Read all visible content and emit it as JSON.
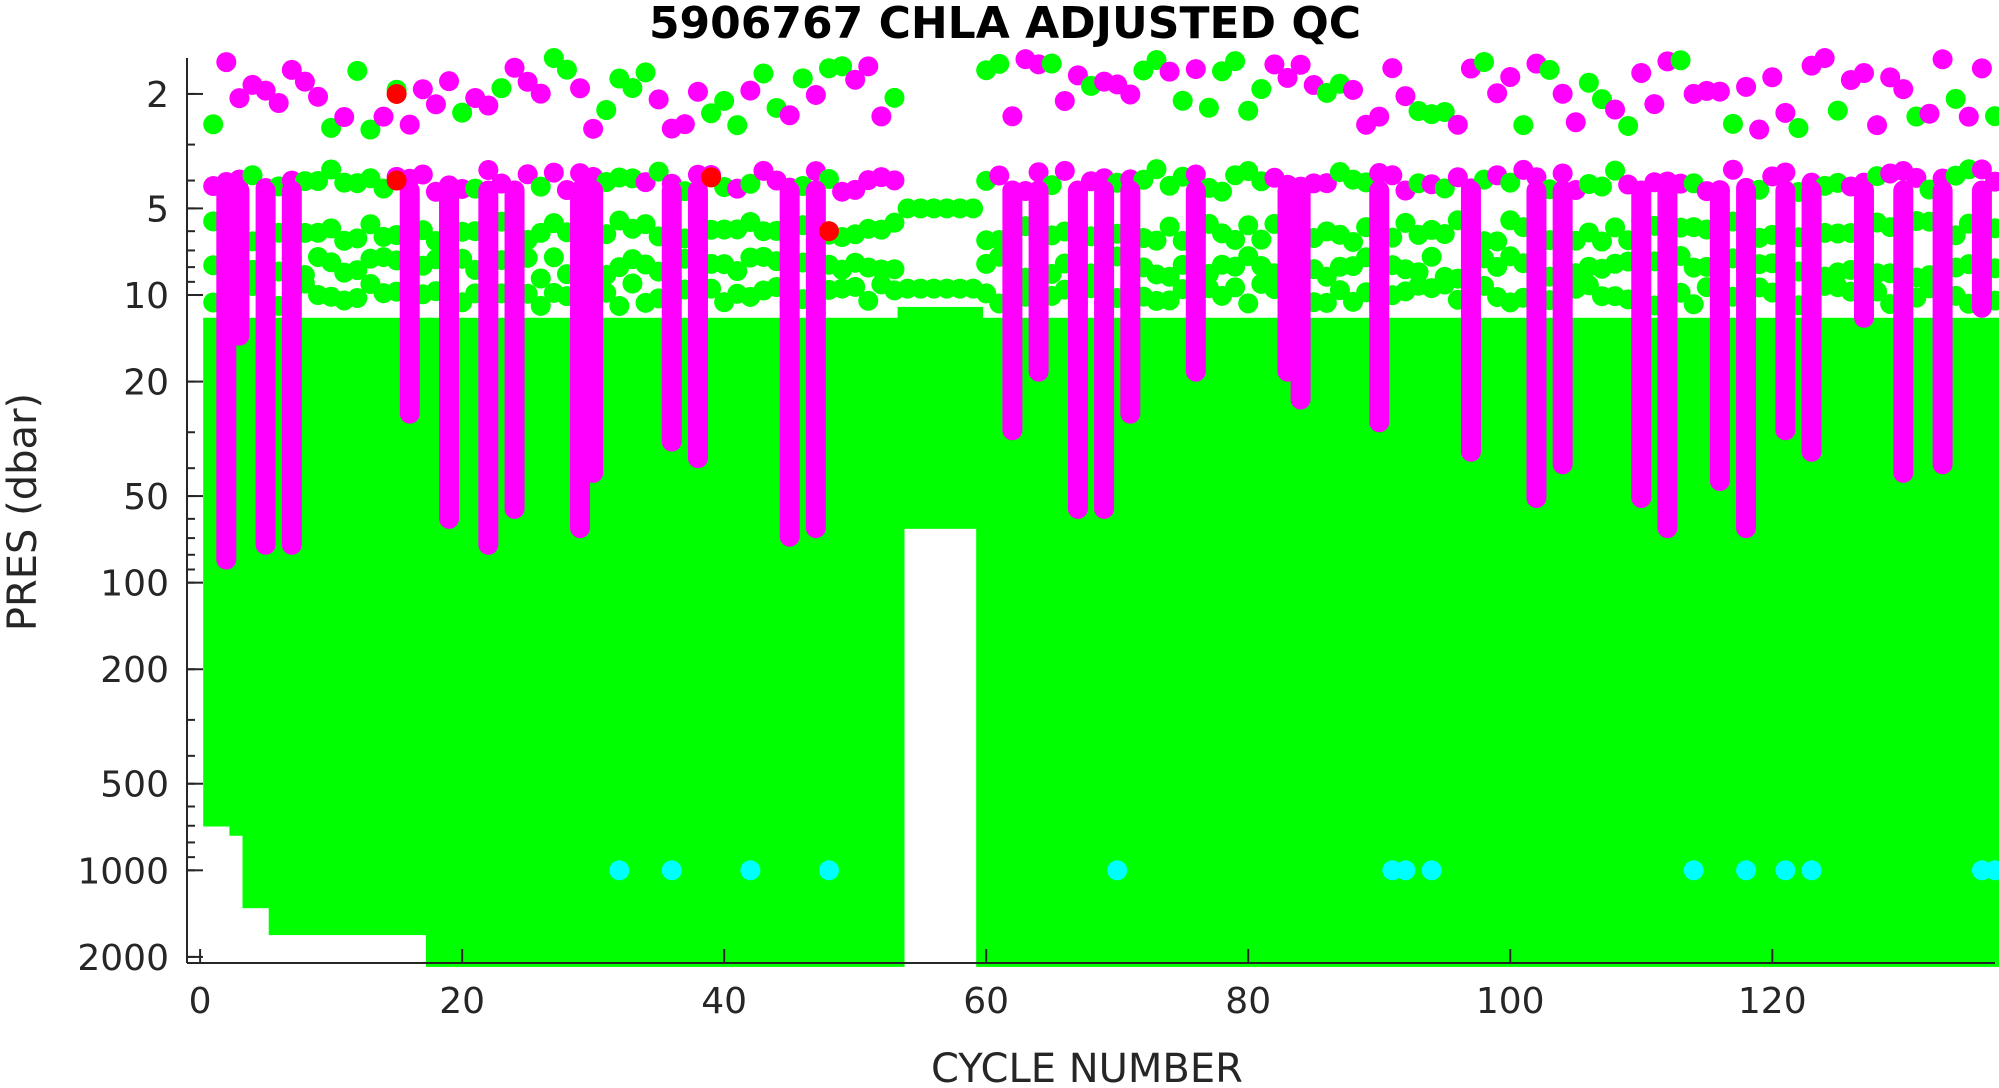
{
  "chart_data": {
    "type": "scatter",
    "title": "5906767  CHLA ADJUSTED QC",
    "xlabel": "CYCLE NUMBER",
    "ylabel": "PRES (dbar)",
    "xlim": [
      -1,
      137
    ],
    "ylim": [
      1.5,
      2100
    ],
    "yscale": "log",
    "y_reversed": true,
    "x_ticks": [
      0,
      20,
      40,
      60,
      80,
      100,
      120
    ],
    "y_ticks": [
      2,
      5,
      10,
      20,
      50,
      100,
      200,
      500,
      1000,
      2000
    ],
    "grid": false,
    "legend": "none",
    "colors": {
      "qc_good": "#00ff00",
      "qc_probably_good": "#ff00ff",
      "qc_bad": "#ff0000",
      "qc_changed": "#00ffff"
    },
    "cycles_main": [
      1,
      53
    ],
    "cycles_gap_shallow": [
      54,
      59
    ],
    "cycles_second": [
      60,
      137
    ],
    "base_depth_profile": [
      {
        "cycle_from": 1,
        "cycle_to": 2,
        "max_pres": 650
      },
      {
        "cycle_from": 3,
        "cycle_to": 3,
        "max_pres": 700
      },
      {
        "cycle_from": 4,
        "cycle_to": 5,
        "max_pres": 1250
      },
      {
        "cycle_from": 6,
        "cycle_to": 17,
        "max_pres": 1550
      },
      {
        "cycle_from": 18,
        "cycle_to": 53,
        "max_pres": 2000
      },
      {
        "cycle_from": 54,
        "cycle_to": 59,
        "max_pres": 60
      },
      {
        "cycle_from": 60,
        "cycle_to": 137,
        "max_pres": 2000
      }
    ],
    "surface_levels": [
      2,
      4,
      6,
      8,
      10
    ],
    "series": [
      {
        "name": "",
        "qc": "probably_good",
        "points_desc": "magenta profile columns (cycle, max_pres)",
        "columns": [
          [
            2,
            90
          ],
          [
            3,
            15
          ],
          [
            5,
            80
          ],
          [
            7,
            80
          ],
          [
            16,
            28
          ],
          [
            19,
            65
          ],
          [
            22,
            80
          ],
          [
            24,
            60
          ],
          [
            29,
            70
          ],
          [
            30,
            45
          ],
          [
            36,
            35
          ],
          [
            38,
            40
          ],
          [
            45,
            75
          ],
          [
            47,
            70
          ],
          [
            62,
            32
          ],
          [
            64,
            20
          ],
          [
            67,
            60
          ],
          [
            69,
            60
          ],
          [
            71,
            28
          ],
          [
            76,
            20
          ],
          [
            83,
            20
          ],
          [
            84,
            25
          ],
          [
            90,
            30
          ],
          [
            97,
            38
          ],
          [
            102,
            55
          ],
          [
            104,
            42
          ],
          [
            110,
            55
          ],
          [
            112,
            70
          ],
          [
            116,
            48
          ],
          [
            118,
            70
          ],
          [
            121,
            32
          ],
          [
            123,
            38
          ],
          [
            127,
            13
          ],
          [
            130,
            45
          ],
          [
            133,
            42
          ],
          [
            136,
            12
          ]
        ]
      },
      {
        "name": "",
        "qc": "bad",
        "points": [
          [
            15,
            2
          ],
          [
            15,
            4
          ],
          [
            39,
            3.9
          ],
          [
            48,
            6
          ]
        ]
      },
      {
        "name": "",
        "qc": "changed",
        "points": [
          [
            32,
            1000
          ],
          [
            36,
            1000
          ],
          [
            42,
            1000
          ],
          [
            48,
            1000
          ],
          [
            70,
            1000
          ],
          [
            91,
            1000
          ],
          [
            92,
            1000
          ],
          [
            94,
            1000
          ],
          [
            114,
            1000
          ],
          [
            118,
            1000
          ],
          [
            121,
            1000
          ],
          [
            123,
            1000
          ],
          [
            136,
            1000
          ],
          [
            137,
            1000
          ]
        ]
      }
    ]
  }
}
